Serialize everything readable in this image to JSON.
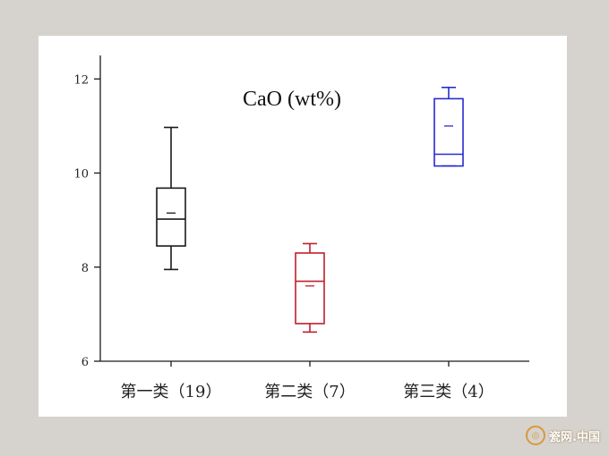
{
  "chart_data": {
    "type": "box",
    "title": "CaO (wt%)",
    "xlabel": "",
    "ylabel": "",
    "ylim": [
      6,
      12.5
    ],
    "yticks": [
      6,
      8,
      10,
      12
    ],
    "categories": [
      "第一类（19）",
      "第二类（7）",
      "第三类（4）"
    ],
    "boxes": [
      {
        "category": "第一类（19）",
        "min": 7.95,
        "q1": 8.45,
        "median": 9.02,
        "mean": 9.15,
        "q3": 9.68,
        "max": 10.97,
        "color": "#1a1a1a"
      },
      {
        "category": "第二类（7）",
        "min": 6.62,
        "q1": 6.8,
        "median": 7.7,
        "mean": 7.6,
        "q3": 8.3,
        "max": 8.5,
        "color": "#c0202a"
      },
      {
        "category": "第三类（4）",
        "min": 10.15,
        "q1": 10.15,
        "median": 10.4,
        "mean": 11.0,
        "q3": 11.58,
        "max": 11.82,
        "color": "#2a2ad0"
      }
    ],
    "grid": false,
    "legend": "none"
  },
  "watermark": {
    "text": "瓷网.中国",
    "icon": "porcelain-logo-icon"
  }
}
